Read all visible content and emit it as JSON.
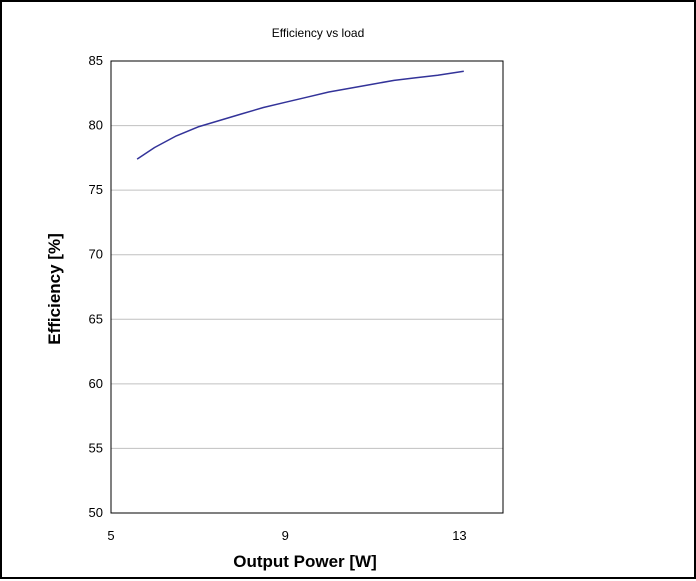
{
  "chart_data": {
    "type": "line",
    "title": "Efficiency vs load",
    "xlabel": "Output Power [W]",
    "ylabel": "Efficiency [%]",
    "xlim": [
      5,
      14
    ],
    "ylim": [
      50,
      85
    ],
    "xticks": [
      5,
      9,
      13
    ],
    "yticks": [
      50,
      55,
      60,
      65,
      70,
      75,
      80,
      85
    ],
    "grid": "horizontal",
    "legend": "none",
    "line_color": "#333399",
    "series": [
      {
        "x": [
          5.6,
          6.0,
          6.5,
          7.0,
          7.5,
          8.0,
          8.5,
          9.0,
          9.5,
          10.0,
          10.5,
          11.0,
          11.5,
          12.0,
          12.5,
          13.1
        ],
        "y": [
          77.4,
          78.3,
          79.2,
          79.9,
          80.4,
          80.9,
          81.4,
          81.8,
          82.2,
          82.6,
          82.9,
          83.2,
          83.5,
          83.7,
          83.9,
          84.2
        ]
      }
    ]
  }
}
